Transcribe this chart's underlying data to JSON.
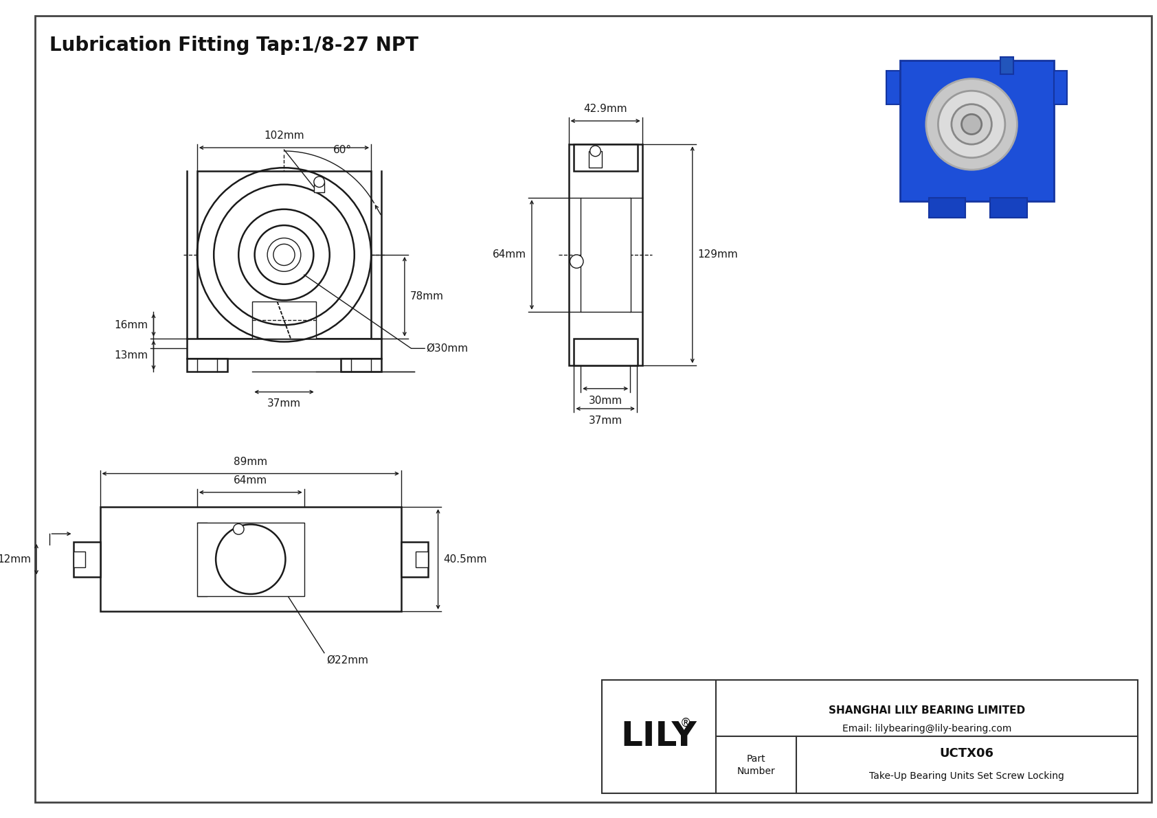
{
  "title": "Lubrication Fitting Tap:1/8-27 NPT",
  "line_color": "#1a1a1a",
  "annotations": {
    "front_w": "102mm",
    "front_h78": "78mm",
    "front_h16": "16mm",
    "front_h13": "13mm",
    "front_w37": "37mm",
    "front_dia30": "Ø30mm",
    "front_angle": "60°",
    "side_w429": "42.9mm",
    "side_h64": "64mm",
    "side_h129": "129mm",
    "side_w30": "30mm",
    "side_w37": "37mm",
    "bot_w89": "89mm",
    "bot_w64": "64mm",
    "bot_h405": "40.5mm",
    "bot_h12": "12mm",
    "bot_dia22": "Ø22mm"
  },
  "title_box": {
    "company": "SHANGHAI LILY BEARING LIMITED",
    "email": "Email: lilybearing@lily-bearing.com",
    "part_label": "Part\nNumber",
    "part_number": "UCTX06",
    "description": "Take-Up Bearing Units Set Screw Locking",
    "brand": "LILY"
  }
}
